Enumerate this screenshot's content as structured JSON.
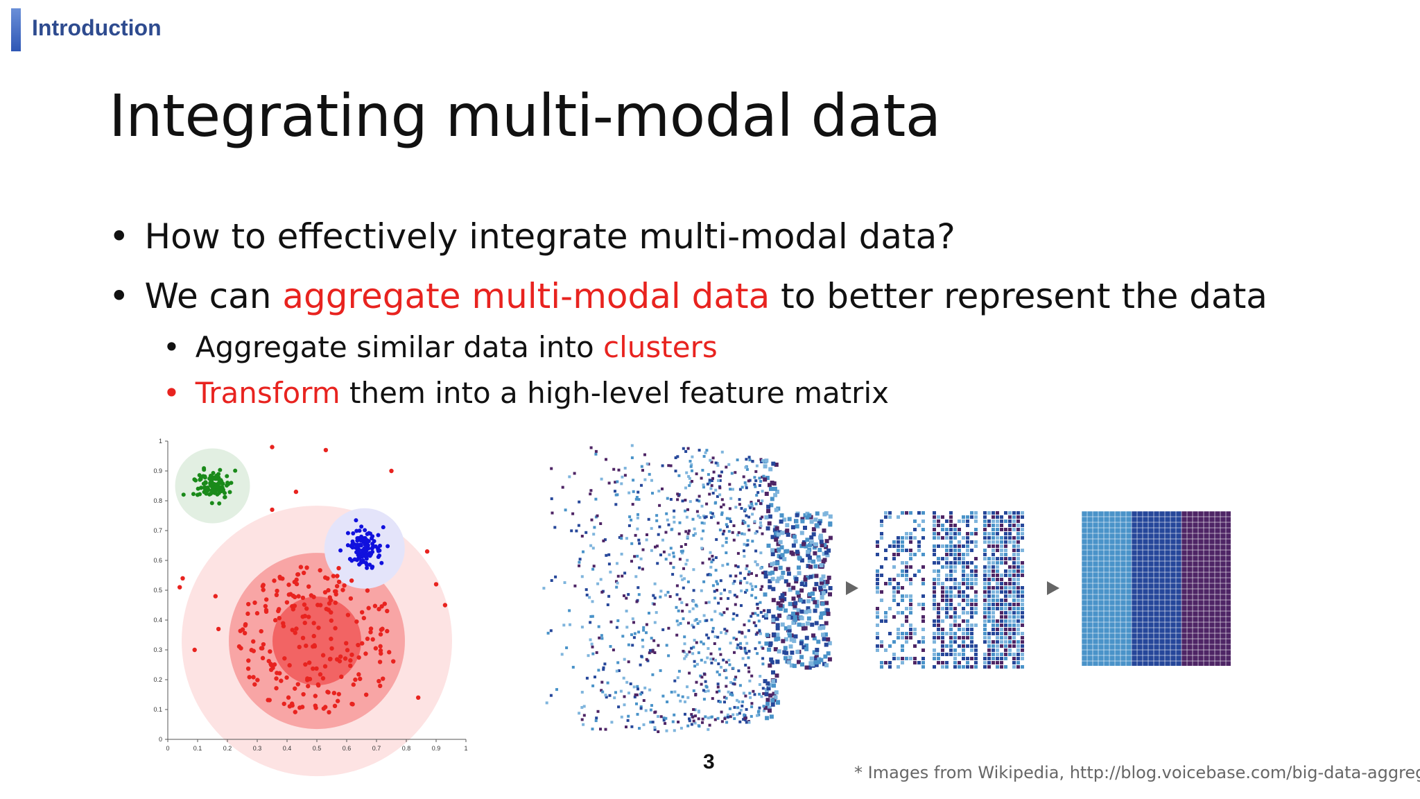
{
  "header": {
    "section": "Introduction"
  },
  "slide": {
    "title": "Integrating multi-modal data",
    "bullets": [
      {
        "text": "How to effectively integrate multi-modal data?"
      },
      {
        "pre": "We can ",
        "highlight": "aggregate multi-modal data",
        "post": " to better represent the data"
      }
    ],
    "sub_bullets": [
      {
        "pre": "Aggregate similar data into ",
        "highlight": "clusters",
        "post": ""
      },
      {
        "highlight": "Transform",
        "post": " them into a high-level feature matrix"
      }
    ],
    "page_number": "3",
    "credit": "* Images from Wikipedia, http://blog.voicebase.com/big-data-aggregation"
  },
  "figure": {
    "x_ticks": [
      "0",
      "0.1",
      "0.2",
      "0.3",
      "0.4",
      "0.5",
      "0.6",
      "0.7",
      "0.8",
      "0.9",
      "1"
    ],
    "y_ticks": [
      "0",
      "0.1",
      "0.2",
      "0.3",
      "0.4",
      "0.5",
      "0.6",
      "0.7",
      "0.8",
      "0.9",
      "1"
    ],
    "colors": {
      "text_red": "#e8231f",
      "cluster_red": "#e8231f",
      "cluster_green": "#1a8a1a",
      "cluster_blue": "#1111dd",
      "matrix_light": "#4a93c9",
      "matrix_mid": "#26479a",
      "matrix_dark": "#4e2565"
    },
    "arrow_icon": "triangle-right-icon"
  }
}
